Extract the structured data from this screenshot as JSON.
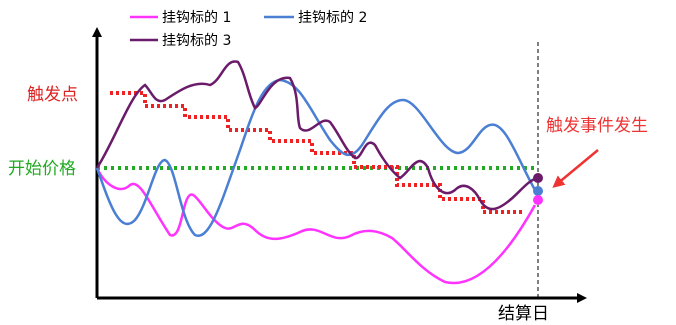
{
  "legend": [
    {
      "label": "挂钩标的 1",
      "color": "#ff33ff"
    },
    {
      "label": "挂钩标的 2",
      "color": "#4a7fd4"
    },
    {
      "label": "挂钩标的 3",
      "color": "#6a1b6a"
    }
  ],
  "labels": {
    "trigger_point": "触发点",
    "start_price": "开始价格",
    "trigger_event": "触发事件发生",
    "settlement_date": "结算日"
  },
  "colors": {
    "trigger_line": "#ee2222",
    "start_line": "#22aa22",
    "trigger_text": "#dd2222",
    "start_text": "#22aa22",
    "event_text": "#ee3333",
    "axis": "#000000"
  }
}
